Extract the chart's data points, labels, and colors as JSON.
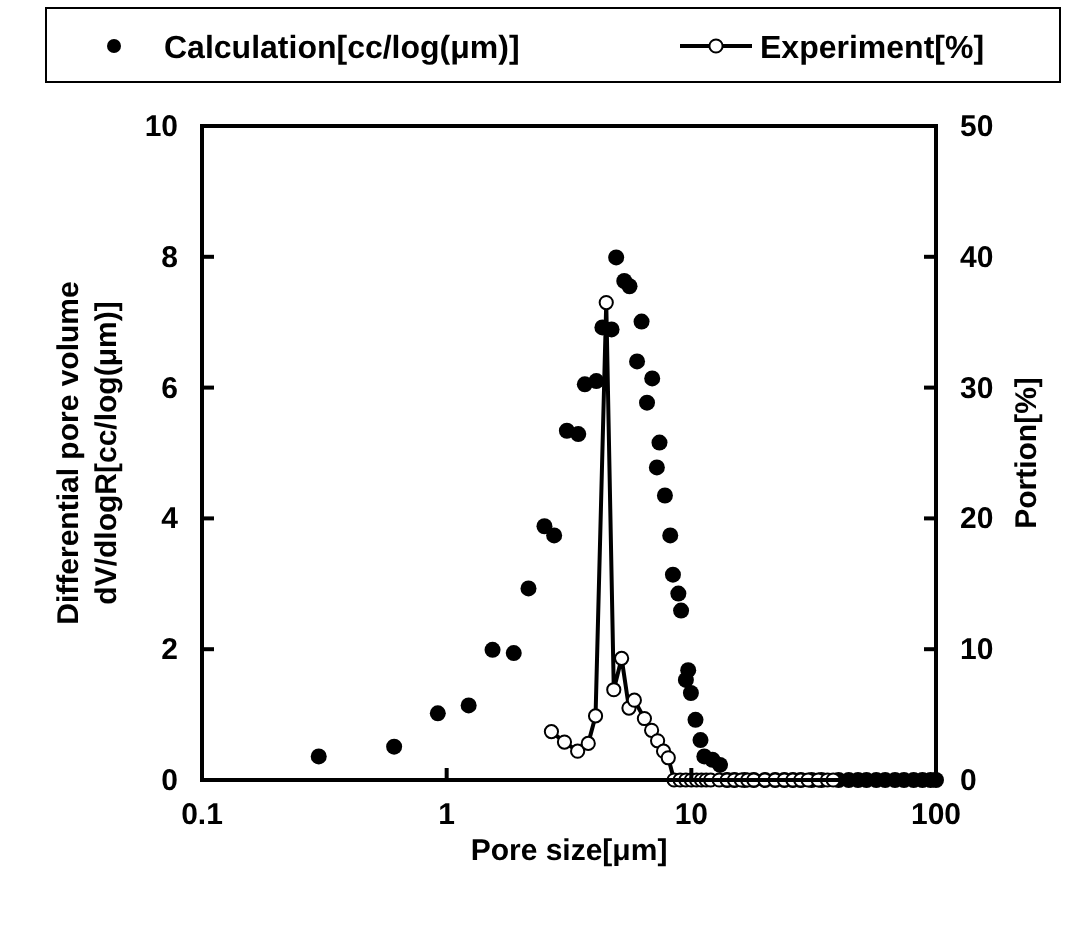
{
  "chart_data": {
    "type": "scatter",
    "xlabel": "Pore size[μm]",
    "ylabel": "Differential pore volume\ndV/dlogR[cc/log(μm)]",
    "y2label": "Portion[%]",
    "log": "x",
    "xlim": [
      0.1,
      100
    ],
    "xticks": [
      0.1,
      1,
      10,
      100
    ],
    "ylim": [
      0,
      10
    ],
    "yticks": [
      0,
      2,
      4,
      6,
      8,
      10
    ],
    "y2lim": [
      0,
      50
    ],
    "y2ticks": [
      0,
      10,
      20,
      30,
      40,
      50
    ],
    "grid": false,
    "legend": "top",
    "marker": "circle",
    "series": [
      {
        "name": "Calculation[cc/log(μm)]",
        "color": "#000000",
        "x": [
          0.3,
          0.61,
          0.92,
          1.23,
          1.54,
          1.88,
          2.16,
          2.51,
          2.75,
          3.1,
          3.45,
          3.67,
          4.09,
          4.33,
          4.72,
          4.93,
          5.32,
          5.59,
          6.0,
          6.26,
          6.59,
          6.92,
          7.23,
          7.41,
          7.8,
          8.2,
          8.41,
          8.85,
          9.08,
          9.5,
          9.71,
          9.96,
          10.4,
          10.9,
          11.3,
          12.2,
          13.1,
          14,
          15,
          16.5,
          18,
          20,
          22,
          24,
          26,
          28,
          31,
          34,
          40,
          44,
          48,
          52,
          57,
          62,
          68,
          74,
          81,
          88,
          95,
          100
        ],
        "values": [
          0.36,
          0.51,
          1.02,
          1.14,
          1.99,
          1.94,
          2.93,
          3.88,
          3.74,
          5.34,
          5.29,
          6.05,
          6.1,
          6.92,
          6.89,
          7.99,
          7.63,
          7.55,
          6.4,
          7.01,
          5.77,
          6.14,
          4.78,
          5.16,
          4.35,
          3.74,
          3.14,
          2.85,
          2.59,
          1.53,
          1.68,
          1.33,
          0.92,
          0.61,
          0.36,
          0.31,
          0.23,
          0,
          0,
          0,
          0,
          0,
          0,
          0,
          0,
          0,
          0,
          0,
          0,
          0,
          0,
          0,
          0,
          0,
          0,
          0,
          0,
          0,
          0,
          0
        ]
      },
      {
        "name": "Experiment[%]",
        "type": "line",
        "axis": "y2",
        "color": "#000000",
        "x": [
          2.68,
          3.03,
          3.43,
          3.79,
          4.06,
          4.49,
          4.82,
          5.19,
          5.56,
          5.85,
          6.43,
          6.88,
          7.28,
          7.7,
          8.05,
          8.5,
          9,
          9.5,
          10,
          10.5,
          11,
          11.5,
          12,
          13,
          14,
          15,
          16,
          17,
          18,
          20,
          22,
          24,
          26,
          28,
          30,
          33,
          36,
          38
        ],
        "values": [
          3.7,
          2.9,
          2.2,
          2.8,
          4.9,
          36.5,
          6.9,
          9.3,
          5.5,
          6.1,
          4.7,
          3.8,
          3.0,
          2.2,
          1.7,
          0,
          0,
          0,
          0,
          0,
          0,
          0,
          0,
          0,
          0,
          0,
          0,
          0,
          0,
          0,
          0,
          0,
          0,
          0,
          0,
          0,
          0,
          0
        ]
      }
    ]
  }
}
